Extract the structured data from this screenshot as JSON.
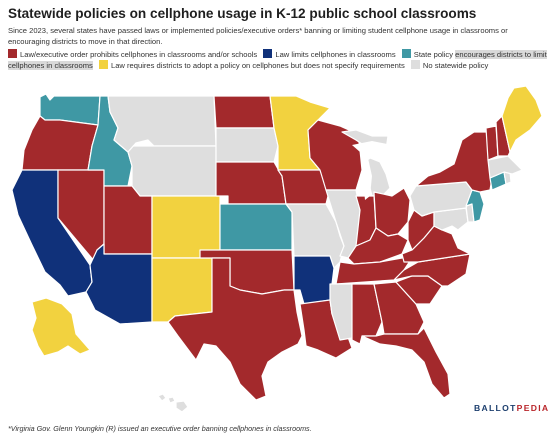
{
  "title": "Statewide policies on cellphone usage in K-12 public school classrooms",
  "subtitle": "Since 2023, several states have passed laws or implemented policies/executive orders* banning or limiting student cellphone usage in classrooms or encouraging districts to move in that direction.",
  "legend": [
    {
      "label_a": "Law/executive order prohibits cellphones in classrooms and/or schools",
      "label_b": "",
      "color": "#a3292c"
    },
    {
      "label_a": "Law limits cellphones in classrooms",
      "label_b": "",
      "color": "#10317a"
    },
    {
      "label_a": "State policy ",
      "label_b": "encourages districts to limit cellphones in classrooms",
      "color": "#3f98a4"
    },
    {
      "label_a": "Law requires districts to adopt a policy on cellphones but does not specify requirements",
      "label_b": "",
      "color": "#f2d23f"
    },
    {
      "label_a": "No statewide policy",
      "label_b": "",
      "color": "#dedede"
    }
  ],
  "footnote": "*Virginia Gov. Glenn Youngkin (R) issued an executive order banning cellphones in classrooms.",
  "logo": {
    "part1": "BALLOT",
    "part2": "PEDIA"
  },
  "map_data": {
    "Washington": "encourage",
    "Oregon": "prohibit",
    "California": "limit",
    "Nevada": "prohibit",
    "Idaho": "encourage",
    "Montana": "none",
    "Wyoming": "none",
    "Utah": "prohibit",
    "Arizona": "limit",
    "Colorado": "policy",
    "New Mexico": "policy",
    "North Dakota": "prohibit",
    "South Dakota": "none",
    "Nebraska": "prohibit",
    "Kansas": "encourage",
    "Oklahoma": "prohibit",
    "Texas": "prohibit",
    "Minnesota": "policy",
    "Iowa": "prohibit",
    "Missouri": "none",
    "Arkansas": "limit",
    "Louisiana": "prohibit",
    "Wisconsin": "prohibit",
    "Illinois": "none",
    "Michigan": "none",
    "Indiana": "prohibit",
    "Ohio": "prohibit",
    "Kentucky": "prohibit",
    "Tennessee": "prohibit",
    "Mississippi": "none",
    "Alabama": "prohibit",
    "Georgia": "prohibit",
    "Florida": "prohibit",
    "South Carolina": "prohibit",
    "North Carolina": "prohibit",
    "Virginia": "prohibit",
    "West Virginia": "prohibit",
    "Maryland": "none",
    "Delaware": "none",
    "Pennsylvania": "none",
    "New Jersey": "encourage",
    "New York": "prohibit",
    "Connecticut": "encourage",
    "Rhode Island": "none",
    "Massachusetts": "none",
    "Vermont": "prohibit",
    "New Hampshire": "prohibit",
    "Maine": "policy",
    "Alaska": "policy",
    "Hawaii": "none"
  }
}
